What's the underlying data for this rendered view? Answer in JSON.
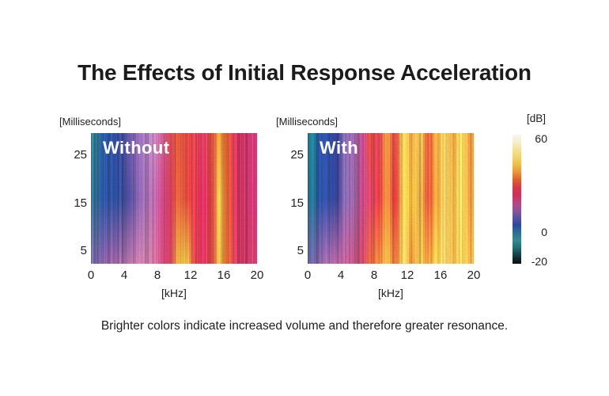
{
  "page": {
    "title": "The Effects of Initial Response Acceleration",
    "caption": "Brighter colors indicate increased volume and therefore greater resonance."
  },
  "chart_data": {
    "type": "heatmap",
    "subtype": "spectrogram-comparison",
    "title": "The Effects of Initial Response Acceleration",
    "annotation": "Brighter colors indicate increased volume and therefore greater resonance.",
    "grid": false,
    "panels": [
      {
        "label": "Without",
        "x_axis": {
          "label": "[kHz]",
          "ticks": [
            0,
            4,
            8,
            12,
            16,
            20
          ],
          "range": [
            0,
            20
          ],
          "bin_width_kHz": 1
        },
        "y_axis": {
          "label": "[Milliseconds]",
          "ticks": [
            25,
            15,
            5
          ],
          "range": [
            2,
            30
          ]
        },
        "approx_dB_by_bin": [
          8,
          12,
          13,
          14,
          17,
          20,
          22,
          24,
          27,
          31,
          36,
          33,
          32,
          30,
          33,
          44,
          35,
          30,
          29,
          28
        ],
        "columns": [
          [
            "#2f7d92",
            "#2f6f96",
            "#7a68a6"
          ],
          [
            "#2a5aa5",
            "#2b55a5",
            "#8a62a8"
          ],
          [
            "#2d4f9f",
            "#2c4f9e",
            "#9a5f9f"
          ],
          [
            "#3a4d9f",
            "#35509f",
            "#a569a5"
          ],
          [
            "#6a58a8",
            "#4f4f9f",
            "#b573a8"
          ],
          [
            "#8a63ae",
            "#7a5ba5",
            "#c077a8"
          ],
          [
            "#a878bd",
            "#a06cb0",
            "#c77ba5"
          ],
          [
            "#b980b8",
            "#b267a8",
            "#cc6f9a"
          ],
          [
            "#c95d93",
            "#ca4687",
            "#d14a7d"
          ],
          [
            "#db4a58",
            "#d93a5e",
            "#dc3f63"
          ],
          [
            "#e25839",
            "#e8643a",
            "#eab23c"
          ],
          [
            "#e04a42",
            "#e34a3e",
            "#ecc344"
          ],
          [
            "#dd4150",
            "#e03a4e",
            "#dc414e"
          ],
          [
            "#d63a60",
            "#d92f63",
            "#d83560"
          ],
          [
            "#e0503f",
            "#e04444",
            "#dd4a44"
          ],
          [
            "#ed9a38",
            "#f0c24a",
            "#eeb744"
          ],
          [
            "#e2583a",
            "#e55c38",
            "#e8663a"
          ],
          [
            "#d93560",
            "#d93560",
            "#da3a63"
          ],
          [
            "#da3a6e",
            "#da3a6e",
            "#d93a6a"
          ],
          [
            "#d63a7a",
            "#d63a7a",
            "#d84070"
          ]
        ]
      },
      {
        "label": "With",
        "x_axis": {
          "label": "[kHz]",
          "ticks": [
            0,
            4,
            8,
            12,
            16,
            20
          ],
          "range": [
            0,
            20
          ],
          "bin_width_kHz": 1
        },
        "y_axis": {
          "label": "[Milliseconds]",
          "ticks": [
            25,
            15,
            5
          ],
          "range": [
            2,
            30
          ]
        },
        "approx_dB_by_bin": [
          6,
          12,
          13,
          14,
          19,
          21,
          25,
          31,
          33,
          39,
          34,
          47,
          43,
          45,
          36,
          40,
          48,
          44,
          48,
          41
        ],
        "columns": [
          [
            "#1f7e8e",
            "#23708e",
            "#6a62a0"
          ],
          [
            "#2b509f",
            "#2b4f9e",
            "#8a5f9f"
          ],
          [
            "#2d4a9c",
            "#2d4a9c",
            "#a565a5"
          ],
          [
            "#333e8f",
            "#34408f",
            "#b05f9a"
          ],
          [
            "#8a6ab0",
            "#8a6ab0",
            "#c4609a"
          ],
          [
            "#a56cb2",
            "#a06ab0",
            "#cc5a8a"
          ],
          [
            "#c4509a",
            "#c84a8a",
            "#d44a6f"
          ],
          [
            "#dc4a3c",
            "#d8426a",
            "#e0653a"
          ],
          [
            "#d84055",
            "#e23b44",
            "#e8833a"
          ],
          [
            "#e8923c",
            "#ec8c3a",
            "#f0b844"
          ],
          [
            "#dd4a44",
            "#e0393f",
            "#e8763a"
          ],
          [
            "#f2cf55",
            "#f2ce52",
            "#f2d45e"
          ],
          [
            "#eda444",
            "#eeb83e",
            "#e8923c"
          ],
          [
            "#f0ca52",
            "#eab44a",
            "#f0c84f"
          ],
          [
            "#e25e3a",
            "#e2553a",
            "#ec9a3e"
          ],
          [
            "#eea03e",
            "#ec9a3a",
            "#f0c24a"
          ],
          [
            "#f2d060",
            "#f0d060",
            "#f2d466"
          ],
          [
            "#e8a844",
            "#eab44a",
            "#eeb84e"
          ],
          [
            "#f2d45e",
            "#f2d45e",
            "#f0cc58"
          ],
          [
            "#e89440",
            "#e89a40",
            "#eeb24a"
          ]
        ]
      }
    ],
    "colorbar": {
      "label": "[dB]",
      "ticks": [
        60,
        0,
        -20
      ],
      "range": [
        -20,
        60
      ],
      "gradient_top_to_bottom": [
        "#f8f6f2 0%",
        "#f5ecc4 7%",
        "#f3dc84 14%",
        "#eec44e 22%",
        "#e8973c 29%",
        "#dd5f30 35%",
        "#d33a45 41%",
        "#cb3060 47%",
        "#b04a85 54%",
        "#8a5499 59%",
        "#55519f 65%",
        "#2b4a9c 70%",
        "#2f6e93 76%",
        "#35898c 82%",
        "#1f6b70 88%",
        "#14393e 94%",
        "#0e0c0c 100%"
      ]
    }
  }
}
